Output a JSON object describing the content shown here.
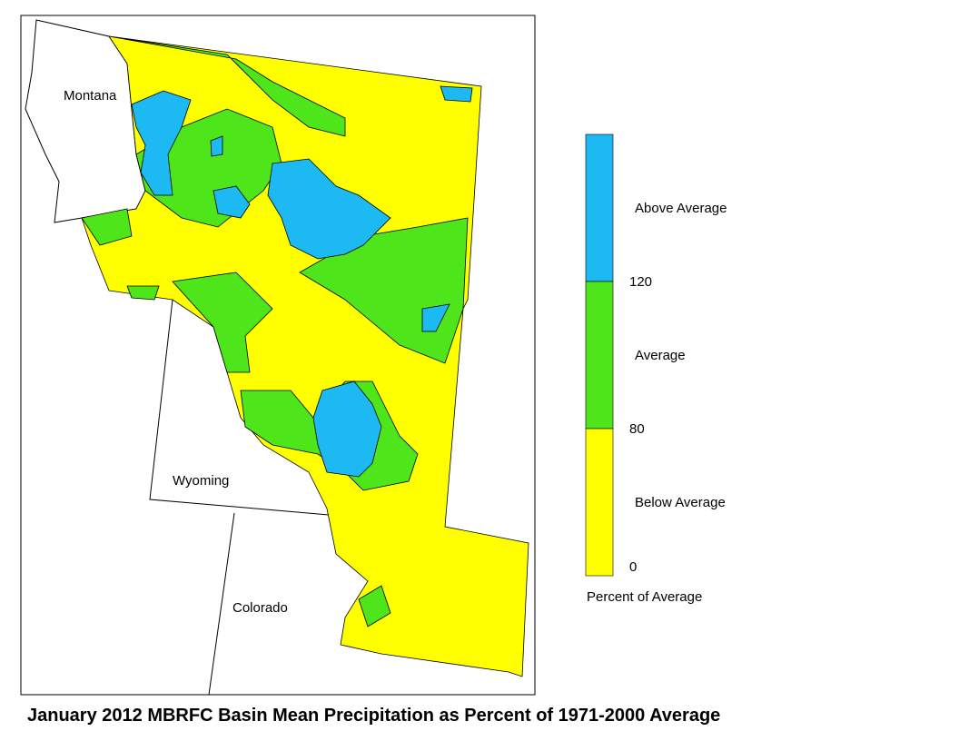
{
  "title": "January 2012 MBRFC Basin Mean Precipitation as Percent of 1971-2000 Average",
  "map_labels": [
    "Montana",
    "Wyoming",
    "Colorado"
  ],
  "legend": {
    "classes": [
      {
        "label": "Above Average",
        "color": "#1cb9f2"
      },
      {
        "label": "Average",
        "color": "#4ee61a"
      },
      {
        "label": "Below Average",
        "color": "#ffff00"
      }
    ],
    "breaks": [
      120,
      80,
      0
    ],
    "title": "Percent of Average"
  }
}
